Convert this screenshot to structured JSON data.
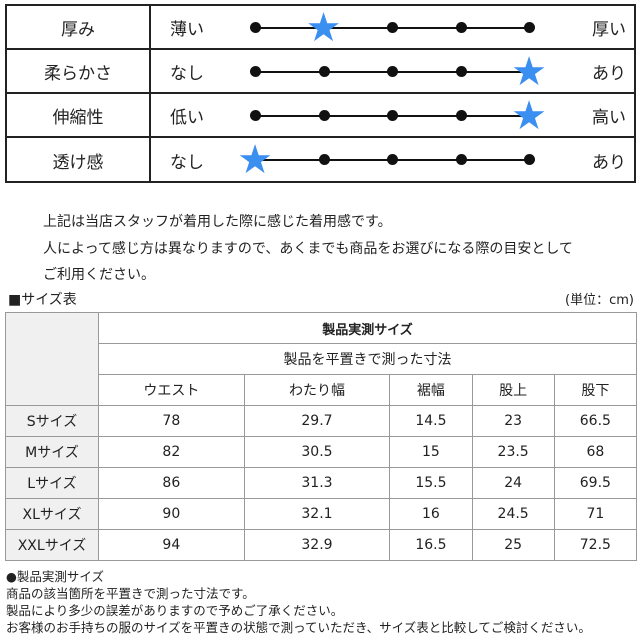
{
  "feel": {
    "star_color": "#3b8ff0",
    "rows": [
      {
        "name": "厚み",
        "left": "薄い",
        "right": "厚い",
        "level": 2,
        "max": 5
      },
      {
        "name": "柔らかさ",
        "left": "なし",
        "right": "あり",
        "level": 5,
        "max": 5
      },
      {
        "name": "伸縮性",
        "left": "低い",
        "right": "高い",
        "level": 5,
        "max": 5
      },
      {
        "name": "透け感",
        "left": "なし",
        "right": "あり",
        "level": 1,
        "max": 5
      }
    ]
  },
  "notes": [
    "上記は当店スタッフが着用した際に感じた着用感です。",
    "人によって感じ方は異なりますので、あくまでも商品をお選びになる際の目安として",
    "ご利用ください。"
  ],
  "size_table": {
    "title": "■サイズ表",
    "unit": "(単位：cm)",
    "header1": "製品実測サイズ",
    "header2": "製品を平置きで測った寸法",
    "columns": [
      "ウエスト",
      "わたり幅",
      "裾幅",
      "股上",
      "股下"
    ],
    "rows": [
      {
        "label": "Sサイズ",
        "values": [
          "78",
          "29.7",
          "14.5",
          "23",
          "66.5"
        ]
      },
      {
        "label": "Mサイズ",
        "values": [
          "82",
          "30.5",
          "15",
          "23.5",
          "68"
        ]
      },
      {
        "label": "Lサイズ",
        "values": [
          "86",
          "31.3",
          "15.5",
          "24",
          "69.5"
        ]
      },
      {
        "label": "XLサイズ",
        "values": [
          "90",
          "32.1",
          "16",
          "24.5",
          "71"
        ]
      },
      {
        "label": "XXLサイズ",
        "values": [
          "94",
          "32.9",
          "16.5",
          "25",
          "72.5"
        ]
      }
    ]
  },
  "footer": [
    "●製品実測サイズ",
    "商品の該当箇所を平置きで測った寸法です。",
    "製品により多少の誤差がありますので予めご了承ください。",
    "お客様のお手持ちの服のサイズを平置きの状態で測っていただき、サイズ表と比較してご検討ください。"
  ]
}
